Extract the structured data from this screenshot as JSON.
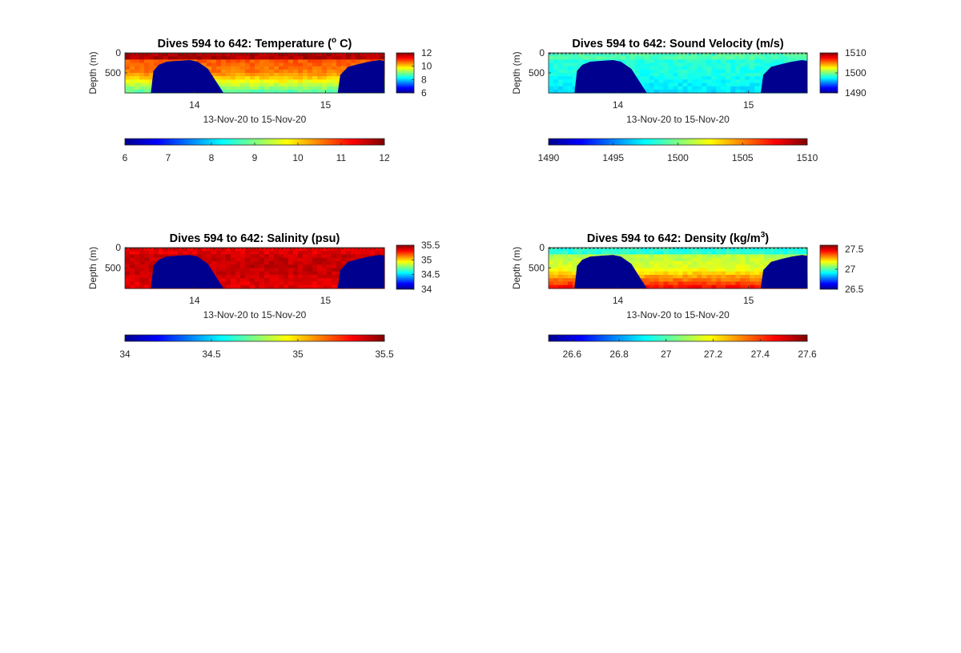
{
  "chart_data": [
    {
      "type": "heatmap",
      "title": "Dives 594 to 642: Temperature (",
      "title_sup": "o",
      "title_end": " C)",
      "xlabel": "13-Nov-20 to 15-Nov-20",
      "ylabel": "Depth (m)",
      "xticks": [
        "14",
        "15"
      ],
      "yticks": [
        "0",
        "500"
      ],
      "colorbar_side": {
        "ticks": [
          "12",
          "10",
          "8",
          "6"
        ]
      },
      "colorbar_bottom": {
        "ticks": [
          "6",
          "7",
          "8",
          "9",
          "10",
          "11",
          "12"
        ]
      },
      "clim": [
        6,
        12
      ],
      "colormap": "jet",
      "notes": "surface 11-12, mixed layer ~10-11 to 300 m, deep 8-9.5",
      "surface_value": 11.7,
      "mid_value": 10.5,
      "deep_value": 8.8
    },
    {
      "type": "heatmap",
      "title": "Dives 594 to 642: Sound Velocity (m/s)",
      "title_sup": "",
      "title_end": "",
      "xlabel": "13-Nov-20 to 15-Nov-20",
      "ylabel": "Depth (m)",
      "xticks": [
        "14",
        "15"
      ],
      "yticks": [
        "0",
        "500"
      ],
      "colorbar_side": {
        "ticks": [
          "1510",
          "1500",
          "1490"
        ]
      },
      "colorbar_bottom": {
        "ticks": [
          "1490",
          "1495",
          "1500",
          "1505",
          "1510"
        ]
      },
      "clim": [
        1490,
        1510
      ],
      "colormap": "jet",
      "surface_value": 1499,
      "mid_value": 1498,
      "deep_value": 1497
    },
    {
      "type": "heatmap",
      "title": "Dives 594 to 642: Salinity (psu)",
      "title_sup": "",
      "title_end": "",
      "xlabel": "13-Nov-20 to 15-Nov-20",
      "ylabel": "Depth (m)",
      "xticks": [
        "14",
        "15"
      ],
      "yticks": [
        "0",
        "500"
      ],
      "colorbar_side": {
        "ticks": [
          "35.5",
          "35",
          "34.5",
          "34"
        ]
      },
      "colorbar_bottom": {
        "ticks": [
          "34",
          "34.5",
          "35",
          "35.5"
        ]
      },
      "clim": [
        34,
        35.5
      ],
      "colormap": "jet",
      "surface_value": 35.35,
      "mid_value": 35.4,
      "deep_value": 35.35
    },
    {
      "type": "heatmap",
      "title": "Dives 594 to 642: Density (kg/m",
      "title_sup": "3",
      "title_end": ")",
      "xlabel": "13-Nov-20 to 15-Nov-20",
      "ylabel": "Depth (m)",
      "xticks": [
        "14",
        "15"
      ],
      "yticks": [
        "0",
        "500"
      ],
      "colorbar_side": {
        "ticks": [
          "27.5",
          "27",
          "26.5"
        ]
      },
      "colorbar_bottom": {
        "ticks": [
          "26.6",
          "26.8",
          "27",
          "27.2",
          "27.4",
          "27.6"
        ]
      },
      "clim": [
        26.5,
        27.6
      ],
      "colormap": "jet",
      "surface_value": 26.95,
      "mid_value": 27.15,
      "deep_value": 27.45
    }
  ],
  "colors": {
    "no_data": "#00008f",
    "axis": "#262626"
  }
}
